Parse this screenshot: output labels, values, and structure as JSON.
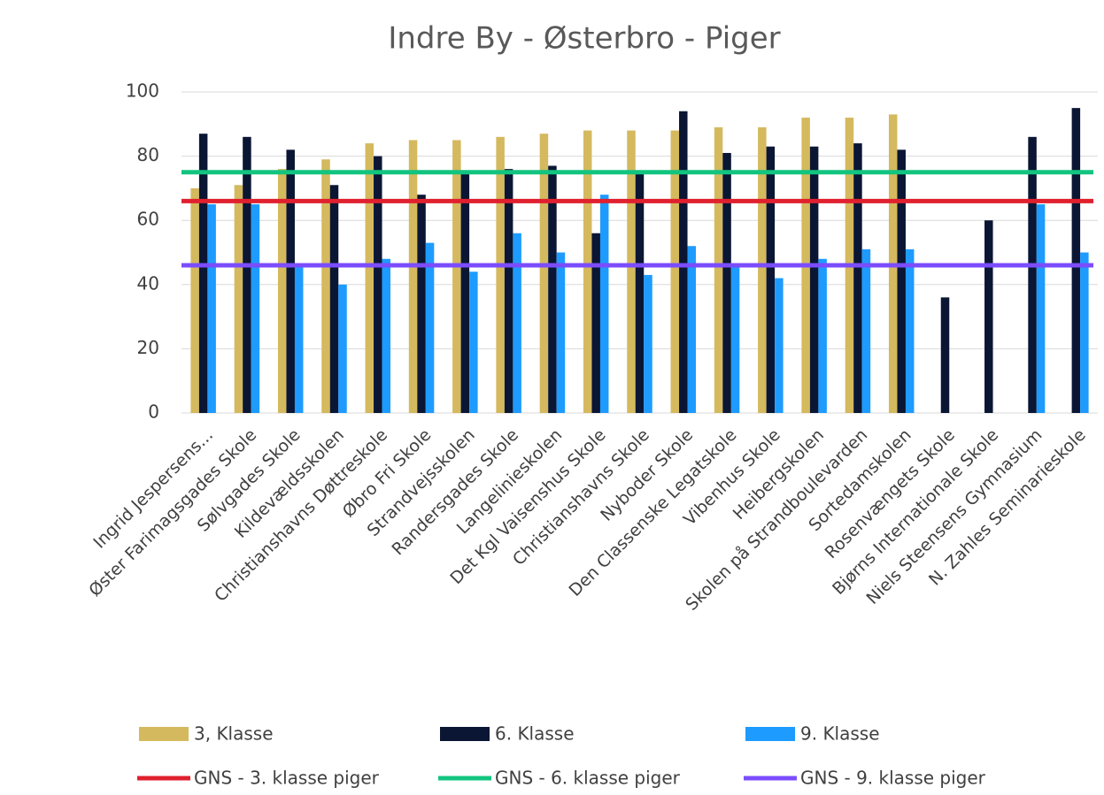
{
  "chart_data": {
    "type": "bar",
    "title": "Indre By - Østerbro - Piger",
    "categories": [
      "Ingrid Jespersens...",
      "Øster Farimagsgades Skole",
      "Sølvgades Skole",
      "Kildevældsskolen",
      "Christianshavns Døttreskole",
      "Øbro Fri Skole",
      "Strandvejsskolen",
      "Randersgades Skole",
      "Langelinieskolen",
      "Det Kgl Vaisenshus Skole",
      "Christianshavns Skole",
      "Nyboder Skole",
      "Den Classenske Legatskole",
      "Vibenhus Skole",
      "Heibergskolen",
      "Skolen på Strandboulevarden",
      "Sortedamskolen",
      "Rosenvængets Skole",
      "Bjørns Internationale Skole",
      "Niels Steensens Gymnasium",
      "N. Zahles Seminarieskole"
    ],
    "series": [
      {
        "name": "3, Klasse",
        "color": "#d4b95e",
        "values": [
          70,
          71,
          76,
          79,
          84,
          85,
          85,
          86,
          87,
          88,
          88,
          88,
          89,
          89,
          92,
          92,
          93,
          null,
          null,
          null,
          null
        ]
      },
      {
        "name": "6. Klasse",
        "color": "#0a1633",
        "values": [
          87,
          86,
          82,
          71,
          80,
          68,
          75,
          76,
          77,
          56,
          75,
          94,
          81,
          83,
          83,
          84,
          82,
          36,
          60,
          86,
          95
        ]
      },
      {
        "name": "9. Klasse",
        "color": "#1e9bff",
        "values": [
          65,
          65,
          46,
          40,
          48,
          53,
          44,
          56,
          50,
          68,
          43,
          52,
          46,
          42,
          48,
          51,
          51,
          null,
          null,
          65,
          50
        ]
      }
    ],
    "lines": [
      {
        "name": "GNS - 3. klasse piger",
        "color": "#e0202e",
        "value": 66
      },
      {
        "name": "GNS - 6. klasse piger",
        "color": "#12c47f",
        "value": 75
      },
      {
        "name": "GNS - 9. klasse piger",
        "color": "#7b4dff",
        "value": 46
      }
    ],
    "ylim": [
      0,
      100
    ],
    "yticks": [
      0,
      20,
      40,
      60,
      80,
      100
    ],
    "grid": true
  }
}
